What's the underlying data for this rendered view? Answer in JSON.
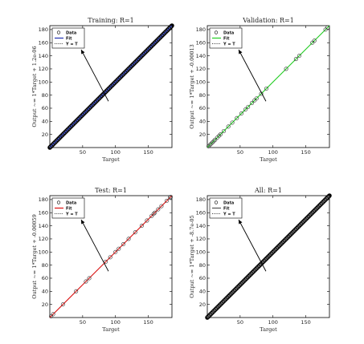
{
  "chart_data": [
    {
      "type": "scatter",
      "title": "Training: R=1",
      "xlabel": "Target",
      "ylabel": "Output ~= 1*Target + 1.2e-06",
      "xlim": [
        0,
        186
      ],
      "ylim": [
        0,
        186
      ],
      "xticks": [
        50,
        100,
        150
      ],
      "yticks": [
        20,
        40,
        60,
        80,
        100,
        120,
        140,
        160,
        180
      ],
      "fit_color": "#1f2fb0",
      "legend": [
        "Data",
        "Fit",
        "Y = T"
      ],
      "legend_position": "top-left",
      "points_range": [
        0,
        186
      ],
      "density": "dense",
      "series": [
        {
          "name": "Data",
          "x": [
            0,
            186
          ],
          "y": [
            0,
            186
          ]
        },
        {
          "name": "Fit",
          "x": [
            0,
            186
          ],
          "y": [
            0,
            186
          ]
        },
        {
          "name": "Y = T",
          "x": [
            0,
            186
          ],
          "y": [
            0,
            186
          ]
        }
      ]
    },
    {
      "type": "scatter",
      "title": "Validation: R=1",
      "xlabel": "Target",
      "ylabel": "Output ~= 1*Target + -0.00013",
      "xlim": [
        0,
        186
      ],
      "ylim": [
        0,
        186
      ],
      "xticks": [
        50,
        100,
        150
      ],
      "yticks": [
        20,
        40,
        60,
        80,
        100,
        120,
        140,
        160,
        180
      ],
      "fit_color": "#22d022",
      "legend": [
        "Data",
        "Fit",
        "Y = T"
      ],
      "legend_position": "top-left",
      "data_points": [
        2,
        4,
        6,
        8,
        10,
        12,
        15,
        18,
        20,
        25,
        32,
        38,
        45,
        52,
        58,
        62,
        68,
        72,
        75,
        82,
        90,
        120,
        135,
        140,
        160,
        163,
        180,
        183
      ],
      "series": [
        {
          "name": "Fit",
          "x": [
            0,
            186
          ],
          "y": [
            0,
            186
          ]
        },
        {
          "name": "Y = T",
          "x": [
            0,
            186
          ],
          "y": [
            0,
            186
          ]
        }
      ]
    },
    {
      "type": "scatter",
      "title": "Test: R=1",
      "xlabel": "Target",
      "ylabel": "Output ~= 1*Target + -0.00059",
      "xlim": [
        0,
        186
      ],
      "ylim": [
        0,
        186
      ],
      "xticks": [
        50,
        100,
        150
      ],
      "yticks": [
        20,
        40,
        60,
        80,
        100,
        120,
        140,
        160,
        180
      ],
      "fit_color": "#dd1111",
      "legend": [
        "Data",
        "Fit",
        "Y = T"
      ],
      "legend_position": "top-left",
      "data_points": [
        2,
        5,
        20,
        40,
        55,
        60,
        85,
        92,
        100,
        105,
        112,
        120,
        130,
        140,
        148,
        155,
        158,
        160,
        165,
        170,
        178,
        183,
        184
      ],
      "series": [
        {
          "name": "Fit",
          "x": [
            0,
            186
          ],
          "y": [
            0,
            186
          ]
        },
        {
          "name": "Y = T",
          "x": [
            0,
            186
          ],
          "y": [
            0,
            186
          ]
        }
      ]
    },
    {
      "type": "scatter",
      "title": "All: R=1",
      "xlabel": "Target",
      "ylabel": "Output ~= 1*Target + -8.7e-05",
      "xlim": [
        0,
        186
      ],
      "ylim": [
        0,
        186
      ],
      "xticks": [
        50,
        100,
        150
      ],
      "yticks": [
        20,
        40,
        60,
        80,
        100,
        120,
        140,
        160,
        180
      ],
      "fit_color": "#555555",
      "legend": [
        "Data",
        "Fit",
        "Y = T"
      ],
      "legend_position": "top-left",
      "points_range": [
        0,
        186
      ],
      "density": "dense",
      "series": [
        {
          "name": "Data",
          "x": [
            0,
            186
          ],
          "y": [
            0,
            186
          ]
        },
        {
          "name": "Fit",
          "x": [
            0,
            186
          ],
          "y": [
            0,
            186
          ]
        },
        {
          "name": "Y = T",
          "x": [
            0,
            186
          ],
          "y": [
            0,
            186
          ]
        }
      ]
    }
  ]
}
